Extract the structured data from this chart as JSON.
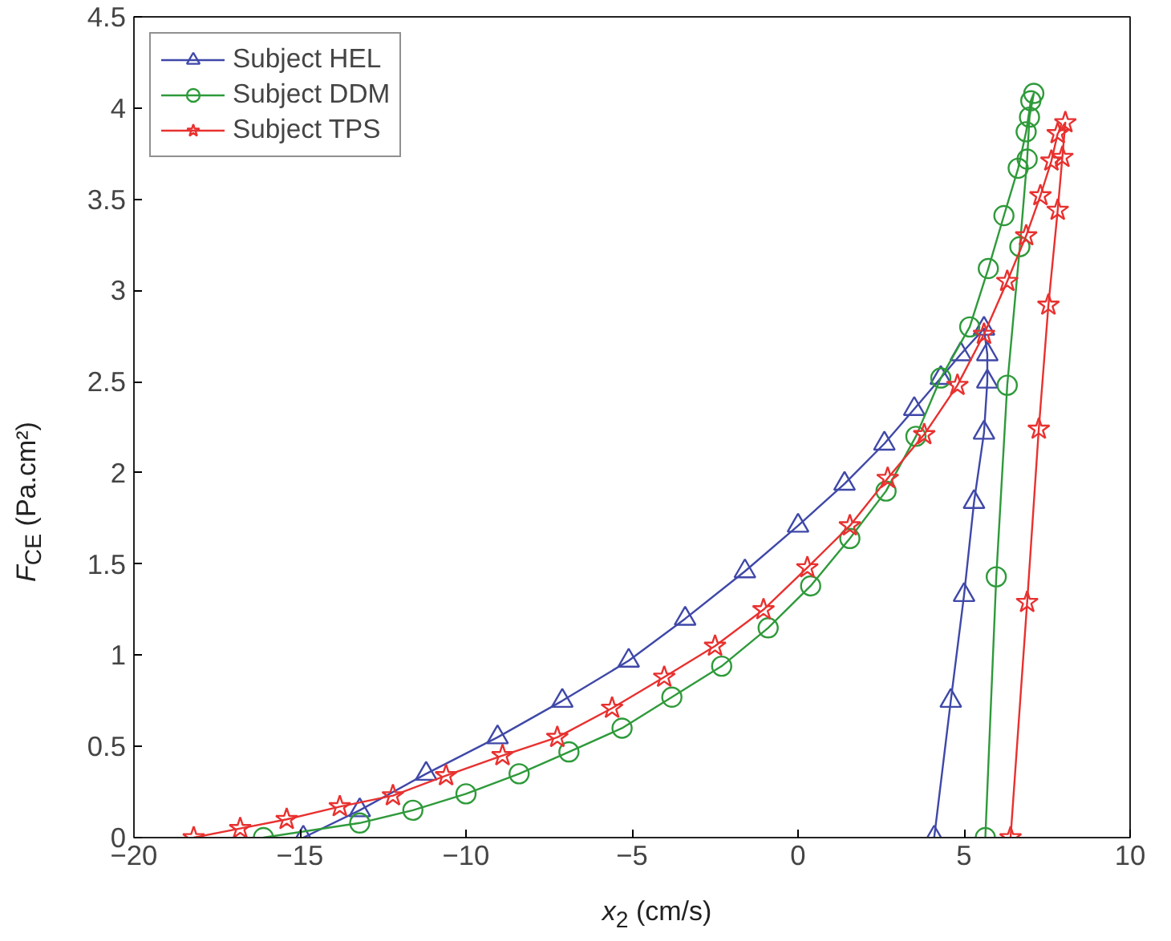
{
  "chart_data": {
    "type": "line",
    "xlabel": "x$_{2}$ (cm/s)",
    "ylabel": "F$_{CE}$ (Pa.cm²)",
    "xlim": [
      -20,
      10
    ],
    "xticks": [
      -20,
      -15,
      -10,
      -5,
      0,
      5,
      10
    ],
    "ylim": [
      0,
      4.5
    ],
    "yticks": [
      0,
      0.5,
      1,
      1.5,
      2,
      2.5,
      3,
      3.5,
      4,
      4.5
    ],
    "grid": false,
    "legend": "top left",
    "line_style": "solid",
    "series": [
      {
        "name": "Subject HEL",
        "color": "#3f48a8",
        "marker": "triangle",
        "x": [
          -14.9,
          -13.2,
          -11.2,
          -9.05,
          -7.1,
          -5.1,
          -3.4,
          -1.6,
          0,
          1.4,
          2.6,
          3.5,
          4.3,
          4.9,
          5.6,
          5.7,
          5.7,
          5.6,
          5.3,
          5.0,
          4.6,
          4.1
        ],
        "values": [
          0,
          0.15,
          0.35,
          0.55,
          0.75,
          0.97,
          1.2,
          1.46,
          1.71,
          1.94,
          2.16,
          2.35,
          2.52,
          2.65,
          2.79,
          2.65,
          2.5,
          2.22,
          1.84,
          1.33,
          0.75,
          0
        ]
      },
      {
        "name": "Subject DDM",
        "color": "#2e9a3a",
        "marker": "circle",
        "x": [
          -16.1,
          -13.2,
          -11.6,
          -10.0,
          -8.4,
          -6.9,
          -5.3,
          -3.8,
          -2.3,
          -0.9,
          0.38,
          1.56,
          2.65,
          3.55,
          4.3,
          5.17,
          5.73,
          6.2,
          6.63,
          6.87,
          7.01,
          7.1,
          6.97,
          6.9,
          6.68,
          6.3,
          5.97,
          5.64
        ],
        "values": [
          0,
          0.08,
          0.15,
          0.24,
          0.35,
          0.47,
          0.6,
          0.77,
          0.94,
          1.15,
          1.38,
          1.64,
          1.9,
          2.2,
          2.52,
          2.8,
          3.12,
          3.41,
          3.67,
          3.87,
          4.04,
          4.08,
          3.95,
          3.72,
          3.24,
          2.48,
          1.43,
          0
        ]
      },
      {
        "name": "Subject TPS",
        "color": "#e8312f",
        "marker": "star",
        "x": [
          -18.2,
          -16.8,
          -15.4,
          -13.8,
          -12.2,
          -10.6,
          -8.9,
          -7.25,
          -5.6,
          -4.03,
          -2.5,
          -1.04,
          0.28,
          1.56,
          2.7,
          3.8,
          4.8,
          5.6,
          6.3,
          6.87,
          7.3,
          7.63,
          7.82,
          8.05,
          7.96,
          7.82,
          7.54,
          7.25,
          6.9,
          6.4
        ],
        "values": [
          0,
          0.05,
          0.1,
          0.17,
          0.23,
          0.34,
          0.45,
          0.55,
          0.71,
          0.88,
          1.05,
          1.25,
          1.48,
          1.71,
          1.97,
          2.21,
          2.48,
          2.76,
          3.05,
          3.3,
          3.52,
          3.71,
          3.86,
          3.92,
          3.73,
          3.44,
          2.92,
          2.24,
          1.29,
          0
        ]
      }
    ]
  }
}
